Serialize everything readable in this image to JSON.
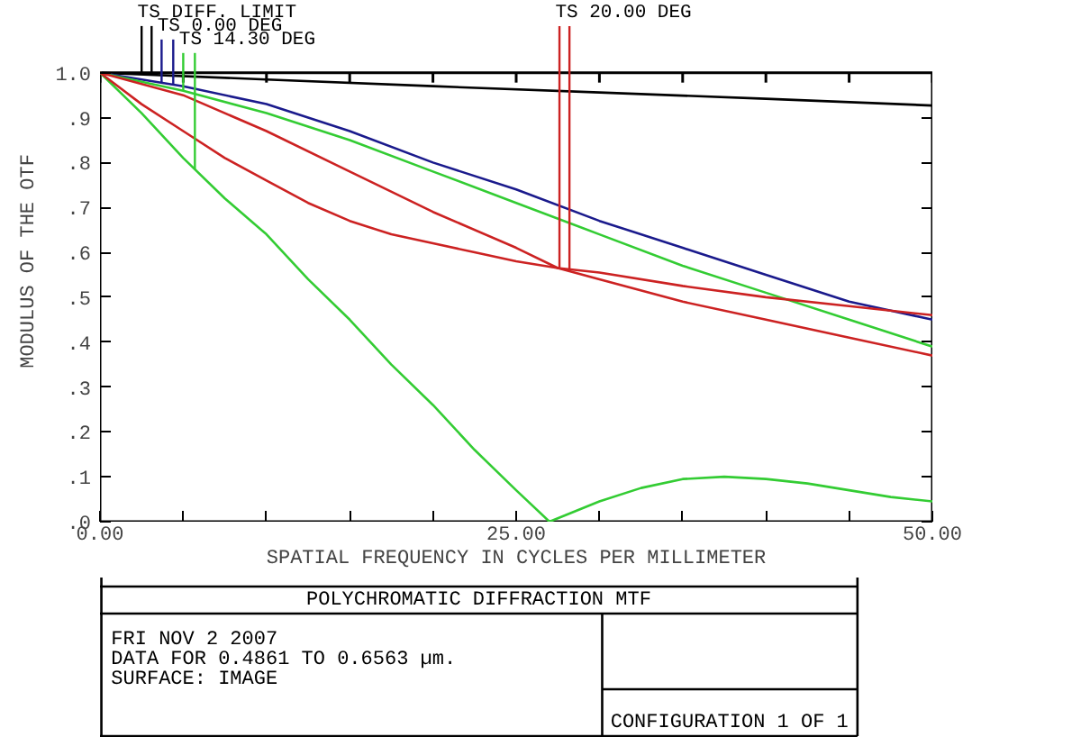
{
  "chart_data": {
    "type": "line",
    "title": "POLYCHROMATIC DIFFRACTION MTF",
    "xlabel": "SPATIAL FREQUENCY IN CYCLES PER MILLIMETER",
    "ylabel": "MODULUS OF THE OTF",
    "xlim": [
      0,
      50
    ],
    "ylim": [
      0,
      1
    ],
    "xticks": [
      {
        "value": 0,
        "label": "0.00"
      },
      {
        "value": 5,
        "label": null
      },
      {
        "value": 10,
        "label": null
      },
      {
        "value": 15,
        "label": null
      },
      {
        "value": 20,
        "label": null
      },
      {
        "value": 25,
        "label": "25.00"
      },
      {
        "value": 30,
        "label": null
      },
      {
        "value": 35,
        "label": null
      },
      {
        "value": 40,
        "label": null
      },
      {
        "value": 45,
        "label": null
      },
      {
        "value": 50,
        "label": "50.00"
      }
    ],
    "yticks": [
      {
        "value": 0,
        "label": ".0"
      },
      {
        "value": 0.1,
        "label": ".1"
      },
      {
        "value": 0.2,
        "label": ".2"
      },
      {
        "value": 0.3,
        "label": ".3"
      },
      {
        "value": 0.4,
        "label": ".4"
      },
      {
        "value": 0.5,
        "label": ".5"
      },
      {
        "value": 0.6,
        "label": ".6"
      },
      {
        "value": 0.7,
        "label": ".7"
      },
      {
        "value": 0.8,
        "label": ".8"
      },
      {
        "value": 0.9,
        "label": ".9"
      },
      {
        "value": 1,
        "label": "1.0"
      }
    ],
    "grid": false,
    "marker": "none",
    "line_style": "solid",
    "series": [
      {
        "name": "TS DIFF. LIMIT",
        "color": "#000000",
        "x": [
          0,
          10,
          20,
          30,
          40,
          50
        ],
        "values": [
          1.0,
          0.985,
          0.97,
          0.956,
          0.942,
          0.927
        ]
      },
      {
        "name": "TS 0.00 DEG",
        "color": "#1a1a8c",
        "x": [
          0,
          5,
          10,
          15,
          20,
          25,
          30,
          35,
          40,
          45,
          50
        ],
        "values": [
          1.0,
          0.97,
          0.93,
          0.87,
          0.8,
          0.74,
          0.67,
          0.61,
          0.55,
          0.49,
          0.45
        ]
      },
      {
        "name": "TS 14.30 DEG",
        "color": "#33cc33",
        "x": [
          0,
          5,
          10,
          15,
          20,
          25,
          30,
          35,
          40,
          45,
          50
        ],
        "values": [
          1.0,
          0.96,
          0.91,
          0.85,
          0.78,
          0.71,
          0.64,
          0.57,
          0.51,
          0.45,
          0.39
        ]
      },
      {
        "color": "#33cc33",
        "x": [
          0,
          2.5,
          5,
          7.5,
          10,
          12.5,
          15,
          17.5,
          20,
          22.5,
          25,
          27,
          28,
          30,
          32.5,
          35,
          37.5,
          40,
          42.5,
          45,
          47.5,
          50
        ],
        "values": [
          1.0,
          0.91,
          0.81,
          0.72,
          0.64,
          0.54,
          0.45,
          0.35,
          0.26,
          0.16,
          0.07,
          0.0,
          0.015,
          0.045,
          0.075,
          0.095,
          0.1,
          0.095,
          0.085,
          0.07,
          0.055,
          0.045
        ]
      },
      {
        "name": "TS 20.00 DEG",
        "color": "#cc2222",
        "x": [
          0,
          5,
          10,
          15,
          20,
          25,
          27.5,
          30,
          35,
          40,
          45,
          50
        ],
        "values": [
          1.0,
          0.95,
          0.87,
          0.78,
          0.69,
          0.61,
          0.565,
          0.54,
          0.49,
          0.45,
          0.41,
          0.37
        ]
      },
      {
        "color": "#cc2222",
        "x": [
          0,
          2.5,
          5,
          7.5,
          10,
          12.5,
          15,
          17.5,
          20,
          22.5,
          25,
          27.5,
          30,
          35,
          40,
          45,
          50
        ],
        "values": [
          1.0,
          0.93,
          0.87,
          0.81,
          0.76,
          0.71,
          0.67,
          0.64,
          0.62,
          0.6,
          0.58,
          0.565,
          0.555,
          0.525,
          0.5,
          0.48,
          0.46
        ]
      }
    ],
    "annotations": [
      "FRI NOV 2 2007",
      "DATA FOR 0.4861 TO 0.6563 µm.",
      "SURFACE: IMAGE",
      "CONFIGURATION 1 OF 1"
    ]
  }
}
